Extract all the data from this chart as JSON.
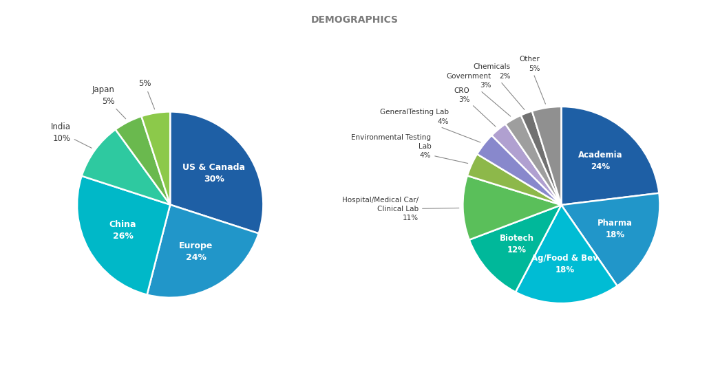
{
  "title": "DEMOGRAPHICS",
  "title_color": "#7a7a7a",
  "background_color": "#ffffff",
  "pie1": {
    "values": [
      30,
      24,
      26,
      10,
      5,
      5
    ],
    "colors": [
      "#1e5fa5",
      "#2196c9",
      "#00b8c8",
      "#2ec9a0",
      "#6ab94e",
      "#8cc94a"
    ],
    "startangle": 90,
    "internal_labels": [
      {
        "idx": 0,
        "text": "US & Canada\n30%"
      },
      {
        "idx": 1,
        "text": "Europe\n24%"
      },
      {
        "idx": 2,
        "text": "China\n26%"
      }
    ],
    "external_labels": [
      {
        "idx": 3,
        "text": "India\n10%"
      },
      {
        "idx": 4,
        "text": "Japan\n5%"
      },
      {
        "idx": 5,
        "text": "5%"
      }
    ]
  },
  "pie2": {
    "values": [
      24,
      18,
      18,
      12,
      11,
      4,
      4,
      3,
      3,
      2,
      5
    ],
    "colors": [
      "#1e5fa5",
      "#2196c9",
      "#00bcd4",
      "#00b89a",
      "#5abf5a",
      "#8db84a",
      "#8888cc",
      "#b0a0d0",
      "#9e9e9e",
      "#717171",
      "#909090"
    ],
    "startangle": 90,
    "internal_labels": [
      {
        "idx": 0,
        "text": "Academia\n24%"
      },
      {
        "idx": 1,
        "text": "Pharma\n18%"
      },
      {
        "idx": 2,
        "text": "Ag/Food & Bev\n18%"
      },
      {
        "idx": 3,
        "text": "Biotech\n12%"
      }
    ],
    "external_labels": [
      {
        "idx": 4,
        "text": "Hospital/Medical Car/\nClinical Lab\n11%"
      },
      {
        "idx": 5,
        "text": "Environmental Testing\nLab\n4%"
      },
      {
        "idx": 6,
        "text": "GeneralTesting Lab\n4%"
      },
      {
        "idx": 7,
        "text": "CRO\n3%"
      },
      {
        "idx": 8,
        "text": "Government\n3%"
      },
      {
        "idx": 9,
        "text": "Chemicals\n2%"
      },
      {
        "idx": 10,
        "text": "Other\n5%"
      }
    ]
  }
}
